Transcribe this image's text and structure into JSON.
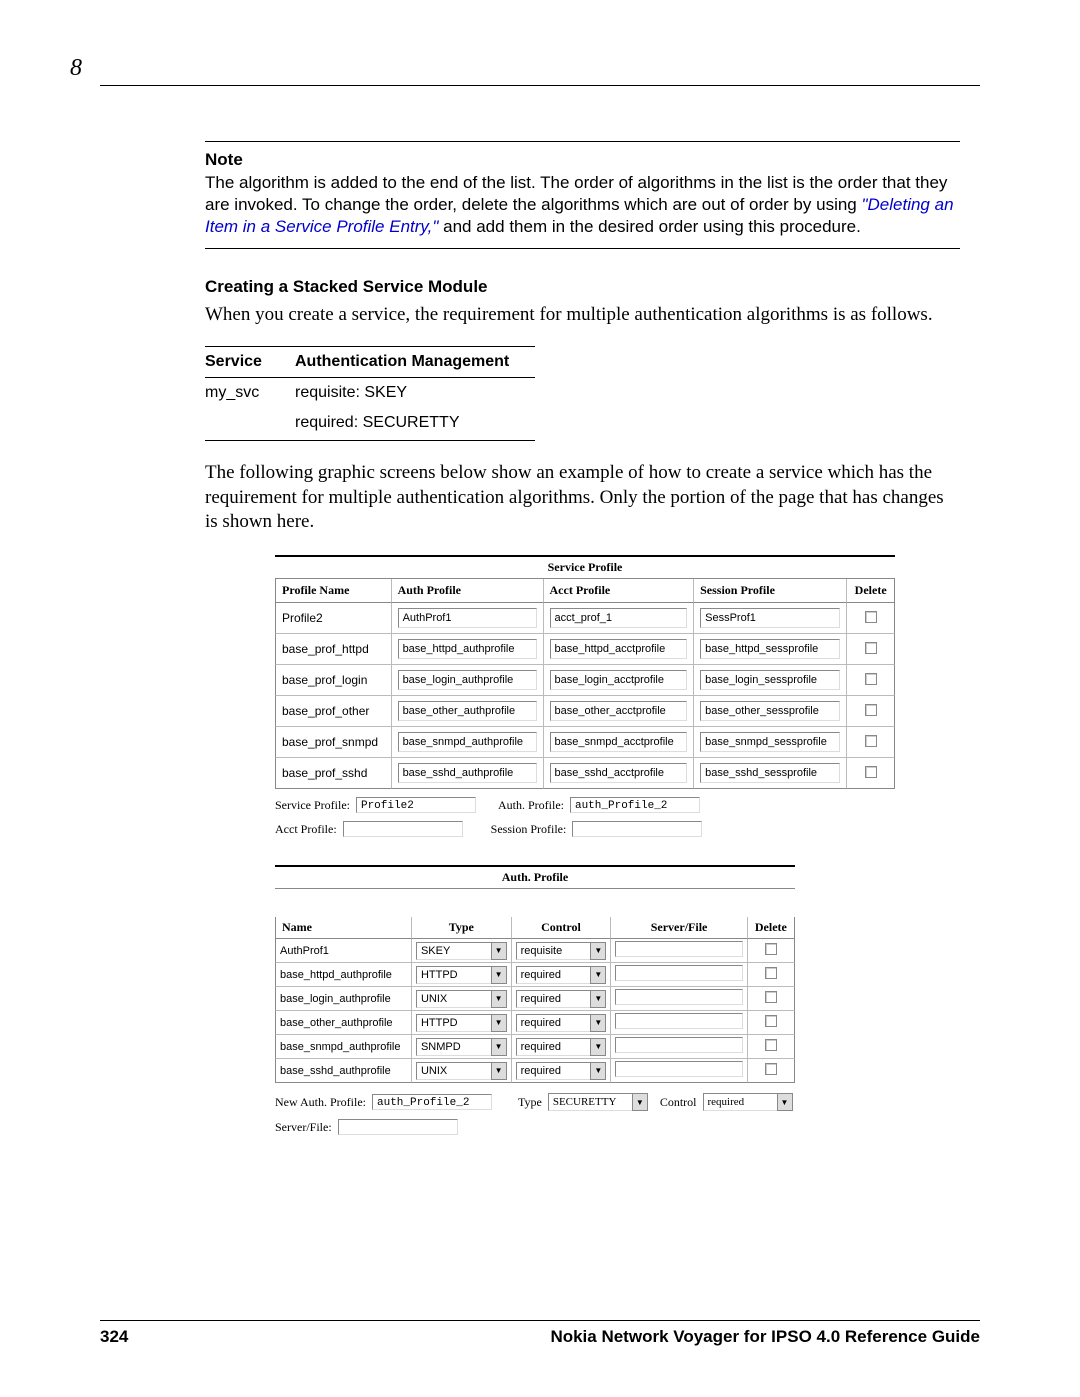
{
  "chapter": "8",
  "note": {
    "heading": "Note",
    "body_pre": "The algorithm is added to the end of the list. The order of algorithms in the list is the order that they are invoked. To change the order, delete the algorithms which are out of order by using ",
    "link": "\"Deleting an Item in a Service Profile Entry,\"",
    "body_post": " and add them in the desired order using this procedure."
  },
  "section_heading": "Creating a Stacked Service Module",
  "intro_para": "When you create a service, the requirement for multiple authentication algorithms is as follows.",
  "mini": {
    "headers": {
      "service": "Service",
      "auth": "Authentication Management"
    },
    "row1": {
      "service": "my_svc",
      "auth": "requisite: SKEY"
    },
    "row2": {
      "service": "",
      "auth": "required: SECURETTY"
    }
  },
  "mid_para": "The following graphic screens below show an example of how to create a service which has the requirement for multiple authentication algorithms. Only the portion of the page that has changes is shown here.",
  "sp": {
    "caption": "Service Profile",
    "headers": {
      "name": "Profile Name",
      "auth": "Auth Profile",
      "acct": "Acct Profile",
      "sess": "Session Profile",
      "del": "Delete"
    },
    "rows": [
      {
        "name": "Profile2",
        "auth": "AuthProf1",
        "acct": "acct_prof_1",
        "sess": "SessProf1"
      },
      {
        "name": "base_prof_httpd",
        "auth": "base_httpd_authprofile",
        "acct": "base_httpd_acctprofile",
        "sess": "base_httpd_sessprofile"
      },
      {
        "name": "base_prof_login",
        "auth": "base_login_authprofile",
        "acct": "base_login_acctprofile",
        "sess": "base_login_sessprofile"
      },
      {
        "name": "base_prof_other",
        "auth": "base_other_authprofile",
        "acct": "base_other_acctprofile",
        "sess": "base_other_sessprofile"
      },
      {
        "name": "base_prof_snmpd",
        "auth": "base_snmpd_authprofile",
        "acct": "base_snmpd_acctprofile",
        "sess": "base_snmpd_sessprofile"
      },
      {
        "name": "base_prof_sshd",
        "auth": "base_sshd_authprofile",
        "acct": "base_sshd_acctprofile",
        "sess": "base_sshd_sessprofile"
      }
    ],
    "form": {
      "svc_profile_label": "Service Profile:",
      "svc_profile_val": "Profile2",
      "auth_profile_label": "Auth. Profile:",
      "auth_profile_val": "auth_Profile_2",
      "acct_profile_label": "Acct Profile:",
      "acct_profile_val": "",
      "sess_profile_label": "Session Profile:",
      "sess_profile_val": ""
    }
  },
  "ap": {
    "caption": "Auth. Profile",
    "headers": {
      "name": "Name",
      "type": "Type",
      "control": "Control",
      "sf": "Server/File",
      "del": "Delete"
    },
    "rows": [
      {
        "name": "AuthProf1",
        "type": "SKEY",
        "control": "requisite",
        "sf": ""
      },
      {
        "name": "base_httpd_authprofile",
        "type": "HTTPD",
        "control": "required",
        "sf": ""
      },
      {
        "name": "base_login_authprofile",
        "type": "UNIX",
        "control": "required",
        "sf": ""
      },
      {
        "name": "base_other_authprofile",
        "type": "HTTPD",
        "control": "required",
        "sf": ""
      },
      {
        "name": "base_snmpd_authprofile",
        "type": "SNMPD",
        "control": "required",
        "sf": ""
      },
      {
        "name": "base_sshd_authprofile",
        "type": "UNIX",
        "control": "required",
        "sf": ""
      }
    ],
    "form": {
      "new_auth_label": "New Auth. Profile:",
      "new_auth_val": "auth_Profile_2",
      "type_label": "Type",
      "type_val": "SECURETTY",
      "control_label": "Control",
      "control_val": "required",
      "sf_label": "Server/File:",
      "sf_val": ""
    }
  },
  "footer": {
    "page": "324",
    "title": "Nokia Network Voyager for IPSO 4.0 Reference Guide"
  }
}
